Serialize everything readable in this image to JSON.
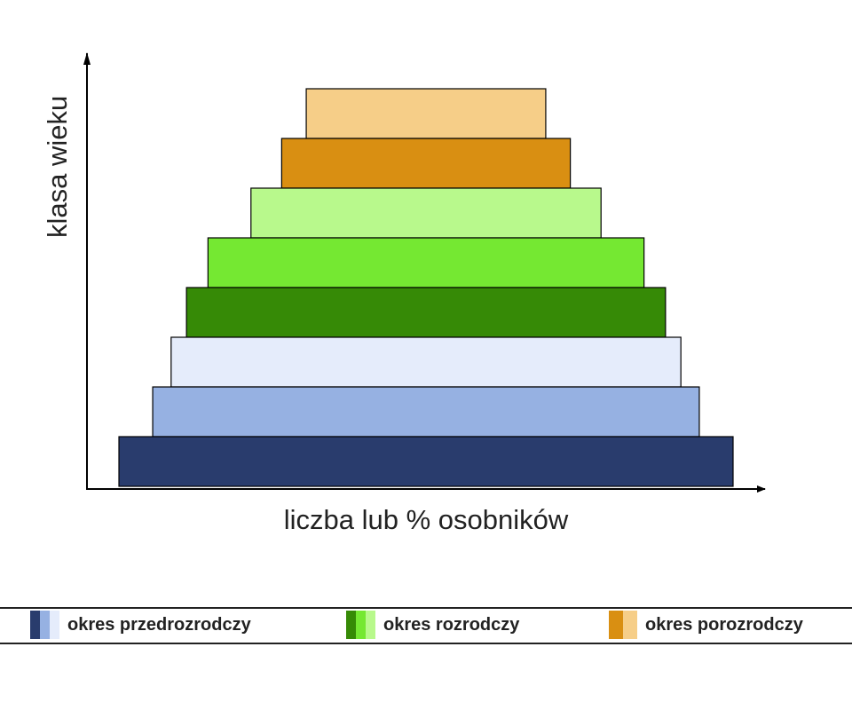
{
  "axes": {
    "y_label": "klasa wieku",
    "x_label": "liczba lub % osobników"
  },
  "age_classes": [
    {
      "period": "okres porozrodczy",
      "color": "#F6CE88",
      "relative_size": 0.39
    },
    {
      "period": "okres porozrodczy",
      "color": "#D98F12",
      "relative_size": 0.47
    },
    {
      "period": "okres rozrodczy",
      "color": "#B8F98C",
      "relative_size": 0.57
    },
    {
      "period": "okres rozrodczy",
      "color": "#75E832",
      "relative_size": 0.71
    },
    {
      "period": "okres rozrodczy",
      "color": "#368A06",
      "relative_size": 0.78
    },
    {
      "period": "okres przedrozrodczy",
      "color": "#E5ECFB",
      "relative_size": 0.83
    },
    {
      "period": "okres przedrozrodczy",
      "color": "#96B1E2",
      "relative_size": 0.89
    },
    {
      "period": "okres przedrozrodczy",
      "color": "#293C6D",
      "relative_size": 1.0
    }
  ],
  "legend": [
    {
      "label": "okres przedrozrodczy",
      "colors": [
        "#293C6D",
        "#96B1E2",
        "#E5ECFB"
      ]
    },
    {
      "label": "okres rozrodczy",
      "colors": [
        "#368A06",
        "#75E832",
        "#B8F98C"
      ]
    },
    {
      "label": "okres porozrodczy",
      "colors": [
        "#D98F12",
        "#F6CE88"
      ]
    }
  ]
}
